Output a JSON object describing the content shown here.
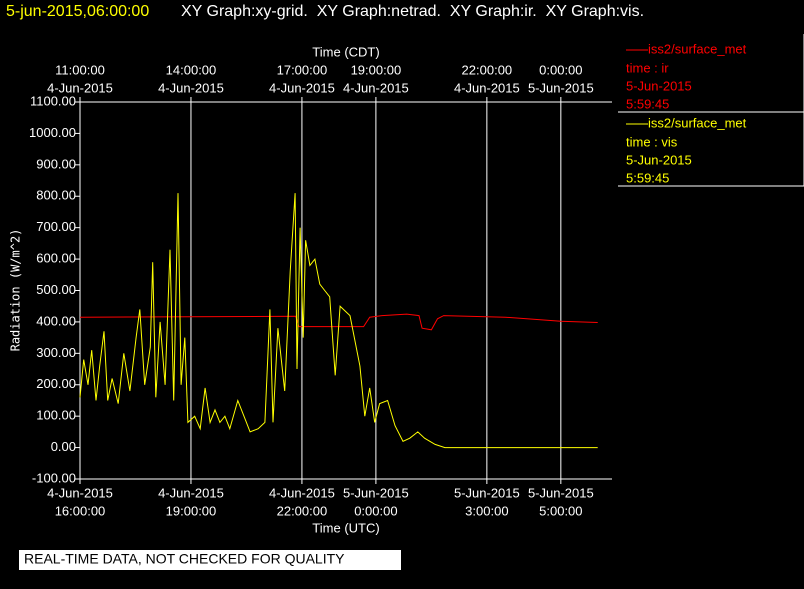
{
  "chart_data": {
    "type": "line",
    "header": {
      "timestamp": "5-jun-2015,06:00:00",
      "graphs": "XY Graph:xy-grid.  XY Graph:netrad.  XY Graph:ir.  XY Graph:vis."
    },
    "footer": "REAL-TIME DATA, NOT CHECKED FOR QUALITY",
    "x_label": "Time (UTC)",
    "x2_label": "Time (CDT)",
    "y_label": "Radiation (W/m^2)",
    "xlim": [
      "2015-06-04T16:00:00",
      "2015-06-05T06:23:00"
    ],
    "ylim": [
      -100,
      1100
    ],
    "yticks": [
      {
        "value": -100,
        "label": "-100.00"
      },
      {
        "value": 0,
        "label": "0.00"
      },
      {
        "value": 100,
        "label": "100.00"
      },
      {
        "value": 200,
        "label": "200.00"
      },
      {
        "value": 300,
        "label": "300.00"
      },
      {
        "value": 400,
        "label": "400.00"
      },
      {
        "value": 500,
        "label": "500.00"
      },
      {
        "value": 600,
        "label": "600.00"
      },
      {
        "value": 700,
        "label": "700.00"
      },
      {
        "value": 800,
        "label": "800.00"
      },
      {
        "value": 900,
        "label": "900.00"
      },
      {
        "value": 1000,
        "label": "1000.00"
      },
      {
        "value": 1100,
        "label": "1100.00"
      }
    ],
    "xticks": [
      {
        "value": "2015-06-04T16:00:00",
        "date": "4-Jun-2015",
        "time": "16:00:00"
      },
      {
        "value": "2015-06-04T19:00:00",
        "date": "4-Jun-2015",
        "time": "19:00:00"
      },
      {
        "value": "2015-06-04T22:00:00",
        "date": "4-Jun-2015",
        "time": "22:00:00"
      },
      {
        "value": "2015-06-05T00:00:00",
        "date": "5-Jun-2015",
        "time": "0:00:00"
      },
      {
        "value": "2015-06-05T03:00:00",
        "date": "5-Jun-2015",
        "time": "3:00:00"
      },
      {
        "value": "2015-06-05T05:00:00",
        "date": "5-Jun-2015",
        "time": "5:00:00"
      }
    ],
    "x2ticks": [
      {
        "value": "2015-06-04T16:00:00",
        "time": "11:00:00",
        "date": "4-Jun-2015"
      },
      {
        "value": "2015-06-04T19:00:00",
        "time": "14:00:00",
        "date": "4-Jun-2015"
      },
      {
        "value": "2015-06-04T22:00:00",
        "time": "17:00:00",
        "date": "4-Jun-2015"
      },
      {
        "value": "2015-06-05T00:00:00",
        "time": "19:00:00",
        "date": "4-Jun-2015"
      },
      {
        "value": "2015-06-05T03:00:00",
        "time": "22:00:00",
        "date": "4-Jun-2015"
      },
      {
        "value": "2015-06-05T05:00:00",
        "time": "0:00:00",
        "date": "5-Jun-2015"
      }
    ],
    "grid": true,
    "series": [
      {
        "name": "iss2/surface_met",
        "legend_lines": [
          "time : ir",
          "5-Jun-2015",
          "5:59:45"
        ],
        "color": "#ff0000",
        "x": [
          "2015-06-04T16:00:00",
          "2015-06-04T21:50:00",
          "2015-06-04T21:55:00",
          "2015-06-04T23:40:00",
          "2015-06-04T23:50:00",
          "2015-06-05T00:10:00",
          "2015-06-05T00:50:00",
          "2015-06-05T01:10:00",
          "2015-06-05T01:15:00",
          "2015-06-05T01:30:00",
          "2015-06-05T01:40:00",
          "2015-06-05T01:50:00",
          "2015-06-05T03:30:00",
          "2015-06-05T05:00:00",
          "2015-06-05T05:59:45"
        ],
        "values": [
          415,
          418,
          385,
          385,
          415,
          420,
          425,
          420,
          380,
          375,
          410,
          420,
          415,
          402,
          398
        ]
      },
      {
        "name": "iss2/surface_met",
        "legend_lines": [
          "time : vis",
          "5-Jun-2015",
          "5:59:45"
        ],
        "color": "#ffff00",
        "x": [
          "2015-06-04T16:00:00",
          "2015-06-04T16:06:00",
          "2015-06-04T16:13:00",
          "2015-06-04T16:19:00",
          "2015-06-04T16:26:00",
          "2015-06-04T16:32:00",
          "2015-06-04T16:39:00",
          "2015-06-04T16:45:00",
          "2015-06-04T16:52:00",
          "2015-06-04T17:02:00",
          "2015-06-04T17:11:00",
          "2015-06-04T17:21:00",
          "2015-06-04T17:31:00",
          "2015-06-04T17:37:00",
          "2015-06-04T17:45:00",
          "2015-06-04T17:54:00",
          "2015-06-04T17:58:00",
          "2015-06-04T18:03:00",
          "2015-06-04T18:10:00",
          "2015-06-04T18:18:00",
          "2015-06-04T18:26:00",
          "2015-06-04T18:32:00",
          "2015-06-04T18:39:00",
          "2015-06-04T18:44:00",
          "2015-06-04T18:50:00",
          "2015-06-04T18:55:00",
          "2015-06-04T19:06:00",
          "2015-06-04T19:15:00",
          "2015-06-04T19:23:00",
          "2015-06-04T19:31:00",
          "2015-06-04T19:39:00",
          "2015-06-04T19:47:00",
          "2015-06-04T19:55:00",
          "2015-06-04T20:03:00",
          "2015-06-04T20:16:00",
          "2015-06-04T20:28:00",
          "2015-06-04T20:36:00",
          "2015-06-04T20:49:00",
          "2015-06-04T21:00:00",
          "2015-06-04T21:08:00",
          "2015-06-04T21:13:00",
          "2015-06-04T21:21:00",
          "2015-06-04T21:32:00",
          "2015-06-04T21:41:00",
          "2015-06-04T21:49:00",
          "2015-06-04T21:52:00",
          "2015-06-04T21:57:00",
          "2015-06-04T22:02:00",
          "2015-06-04T22:06:00",
          "2015-06-04T22:13:00",
          "2015-06-04T22:21:00",
          "2015-06-04T22:29:00",
          "2015-06-04T22:37:00",
          "2015-06-04T22:45:00",
          "2015-06-04T22:54:00",
          "2015-06-04T23:02:00",
          "2015-06-04T23:18:00",
          "2015-06-04T23:34:00",
          "2015-06-04T23:42:00",
          "2015-06-04T23:50:00",
          "2015-06-04T23:58:00",
          "2015-06-05T00:06:00",
          "2015-06-05T00:19:00",
          "2015-06-05T00:31:00",
          "2015-06-05T00:44:00",
          "2015-06-05T00:55:00",
          "2015-06-05T01:08:00",
          "2015-06-05T01:19:00",
          "2015-06-05T01:36:00",
          "2015-06-05T01:52:00",
          "2015-06-05T03:21:00",
          "2015-06-05T05:59:45"
        ],
        "values": [
          160,
          280,
          200,
          310,
          150,
          260,
          370,
          150,
          220,
          140,
          300,
          180,
          350,
          440,
          200,
          320,
          590,
          160,
          400,
          200,
          630,
          150,
          810,
          200,
          350,
          80,
          100,
          60,
          190,
          80,
          120,
          80,
          100,
          60,
          150,
          90,
          50,
          60,
          80,
          440,
          80,
          380,
          180,
          560,
          810,
          250,
          700,
          350,
          660,
          580,
          600,
          520,
          500,
          480,
          230,
          450,
          420,
          260,
          100,
          190,
          80,
          140,
          150,
          70,
          20,
          30,
          50,
          30,
          10,
          0,
          0,
          0
        ]
      }
    ]
  }
}
